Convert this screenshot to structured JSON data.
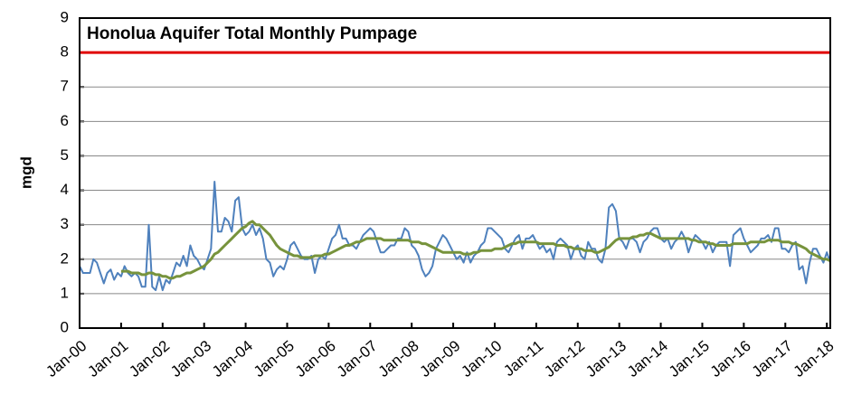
{
  "chart_data": {
    "type": "line",
    "title": "Honolua Aquifer Total Monthly Pumpage",
    "y_label": "mgd",
    "categories": [
      "Jan-00",
      null,
      null,
      null,
      null,
      null,
      null,
      null,
      null,
      null,
      null,
      null,
      "Jan-01",
      null,
      null,
      null,
      null,
      null,
      null,
      null,
      null,
      null,
      null,
      null,
      "Jan-02",
      null,
      null,
      null,
      null,
      null,
      null,
      null,
      null,
      null,
      null,
      null,
      "Jan-03",
      null,
      null,
      null,
      null,
      null,
      null,
      null,
      null,
      null,
      null,
      null,
      "Jan-04",
      null,
      null,
      null,
      null,
      null,
      null,
      null,
      null,
      null,
      null,
      null,
      "Jan-05",
      null,
      null,
      null,
      null,
      null,
      null,
      null,
      null,
      null,
      null,
      null,
      "Jan-06",
      null,
      null,
      null,
      null,
      null,
      null,
      null,
      null,
      null,
      null,
      null,
      "Jan-07",
      null,
      null,
      null,
      null,
      null,
      null,
      null,
      null,
      null,
      null,
      null,
      "Jan-08",
      null,
      null,
      null,
      null,
      null,
      null,
      null,
      null,
      null,
      null,
      null,
      "Jan-09",
      null,
      null,
      null,
      null,
      null,
      null,
      null,
      null,
      null,
      null,
      null,
      "Jan-10",
      null,
      null,
      null,
      null,
      null,
      null,
      null,
      null,
      null,
      null,
      null,
      "Jan-11",
      null,
      null,
      null,
      null,
      null,
      null,
      null,
      null,
      null,
      null,
      null,
      "Jan-12",
      null,
      null,
      null,
      null,
      null,
      null,
      null,
      null,
      null,
      null,
      null,
      "Jan-13",
      null,
      null,
      null,
      null,
      null,
      null,
      null,
      null,
      null,
      null,
      null,
      "Jan-14",
      null,
      null,
      null,
      null,
      null,
      null,
      null,
      null,
      null,
      null,
      null,
      "Jan-15",
      null,
      null,
      null,
      null,
      null,
      null,
      null,
      null,
      null,
      null,
      null,
      "Jan-16",
      null,
      null,
      null,
      null,
      null,
      null,
      null,
      null,
      null,
      null,
      null,
      "Jan-17",
      null,
      null,
      null,
      null,
      null,
      null,
      null,
      null,
      null,
      null,
      null,
      "Jan-18",
      null
    ],
    "series": [
      {
        "color": "#4f81bd",
        "width": 2,
        "values": [
          1.8,
          1.6,
          1.6,
          1.6,
          2.0,
          1.9,
          1.6,
          1.3,
          1.6,
          1.7,
          1.4,
          1.6,
          1.5,
          1.8,
          1.6,
          1.5,
          1.6,
          1.5,
          1.2,
          1.2,
          3.0,
          1.2,
          1.1,
          1.5,
          1.1,
          1.4,
          1.3,
          1.6,
          1.9,
          1.8,
          2.1,
          1.8,
          2.4,
          2.1,
          2.0,
          1.8,
          1.7,
          2.0,
          2.3,
          4.25,
          2.8,
          2.8,
          3.2,
          3.1,
          2.8,
          3.7,
          3.8,
          2.9,
          2.7,
          2.8,
          3.0,
          2.7,
          2.9,
          2.6,
          2.0,
          1.9,
          1.5,
          1.7,
          1.8,
          1.7,
          2.0,
          2.4,
          2.5,
          2.3,
          2.1,
          2.0,
          2.0,
          2.1,
          1.6,
          2.0,
          2.1,
          2.0,
          2.3,
          2.6,
          2.7,
          3.0,
          2.6,
          2.6,
          2.4,
          2.4,
          2.3,
          2.5,
          2.7,
          2.8,
          2.9,
          2.8,
          2.5,
          2.2,
          2.2,
          2.3,
          2.4,
          2.4,
          2.6,
          2.6,
          2.9,
          2.8,
          2.4,
          2.3,
          2.1,
          1.7,
          1.5,
          1.6,
          1.8,
          2.3,
          2.5,
          2.7,
          2.6,
          2.4,
          2.2,
          2.0,
          2.1,
          1.9,
          2.2,
          1.9,
          2.1,
          2.2,
          2.4,
          2.5,
          2.9,
          2.9,
          2.8,
          2.7,
          2.6,
          2.3,
          2.2,
          2.4,
          2.6,
          2.7,
          2.3,
          2.6,
          2.6,
          2.7,
          2.5,
          2.3,
          2.4,
          2.2,
          2.3,
          2.0,
          2.5,
          2.6,
          2.5,
          2.4,
          2.0,
          2.3,
          2.4,
          2.1,
          2.0,
          2.5,
          2.3,
          2.3,
          2.0,
          1.9,
          2.3,
          3.5,
          3.6,
          3.4,
          2.6,
          2.5,
          2.3,
          2.6,
          2.6,
          2.5,
          2.2,
          2.5,
          2.6,
          2.8,
          2.9,
          2.9,
          2.6,
          2.5,
          2.6,
          2.3,
          2.5,
          2.6,
          2.8,
          2.6,
          2.2,
          2.5,
          2.7,
          2.6,
          2.5,
          2.3,
          2.5,
          2.2,
          2.4,
          2.5,
          2.5,
          2.5,
          1.8,
          2.7,
          2.8,
          2.9,
          2.6,
          2.4,
          2.2,
          2.3,
          2.4,
          2.6,
          2.6,
          2.7,
          2.5,
          2.9,
          2.9,
          2.3,
          2.3,
          2.2,
          2.4,
          2.5,
          1.7,
          1.8,
          1.3,
          1.9,
          2.3,
          2.3,
          2.1,
          1.9,
          2.2,
          1.9
        ]
      },
      {
        "color": "#77933c",
        "width": 3,
        "values": [
          null,
          null,
          null,
          null,
          null,
          null,
          null,
          null,
          null,
          null,
          null,
          null,
          1.65,
          1.65,
          1.65,
          1.6,
          1.6,
          1.6,
          1.55,
          1.55,
          1.6,
          1.6,
          1.55,
          1.55,
          1.5,
          1.5,
          1.45,
          1.45,
          1.5,
          1.5,
          1.55,
          1.6,
          1.6,
          1.65,
          1.7,
          1.75,
          1.8,
          1.9,
          2.0,
          2.15,
          2.2,
          2.3,
          2.4,
          2.5,
          2.6,
          2.7,
          2.8,
          2.9,
          2.95,
          3.05,
          3.1,
          3.0,
          3.0,
          2.9,
          2.8,
          2.7,
          2.55,
          2.4,
          2.3,
          2.25,
          2.2,
          2.15,
          2.1,
          2.1,
          2.05,
          2.05,
          2.05,
          2.05,
          2.1,
          2.1,
          2.1,
          2.15,
          2.15,
          2.2,
          2.25,
          2.3,
          2.35,
          2.4,
          2.4,
          2.45,
          2.5,
          2.5,
          2.55,
          2.6,
          2.6,
          2.6,
          2.6,
          2.6,
          2.55,
          2.55,
          2.55,
          2.55,
          2.55,
          2.55,
          2.55,
          2.55,
          2.5,
          2.5,
          2.5,
          2.45,
          2.45,
          2.4,
          2.35,
          2.3,
          2.25,
          2.2,
          2.2,
          2.2,
          2.2,
          2.2,
          2.2,
          2.15,
          2.15,
          2.15,
          2.2,
          2.2,
          2.25,
          2.25,
          2.25,
          2.25,
          2.3,
          2.3,
          2.3,
          2.35,
          2.4,
          2.45,
          2.45,
          2.5,
          2.5,
          2.5,
          2.5,
          2.5,
          2.5,
          2.45,
          2.45,
          2.45,
          2.45,
          2.45,
          2.4,
          2.4,
          2.4,
          2.35,
          2.35,
          2.3,
          2.3,
          2.3,
          2.25,
          2.25,
          2.25,
          2.2,
          2.2,
          2.25,
          2.3,
          2.35,
          2.45,
          2.55,
          2.6,
          2.6,
          2.6,
          2.6,
          2.65,
          2.65,
          2.7,
          2.7,
          2.75,
          2.75,
          2.7,
          2.65,
          2.6,
          2.6,
          2.6,
          2.6,
          2.6,
          2.6,
          2.6,
          2.6,
          2.6,
          2.55,
          2.55,
          2.5,
          2.5,
          2.5,
          2.45,
          2.45,
          2.4,
          2.4,
          2.4,
          2.4,
          2.4,
          2.45,
          2.45,
          2.45,
          2.45,
          2.45,
          2.5,
          2.5,
          2.5,
          2.5,
          2.5,
          2.55,
          2.55,
          2.55,
          2.55,
          2.5,
          2.5,
          2.5,
          2.45,
          2.45,
          2.4,
          2.35,
          2.3,
          2.2,
          2.15,
          2.1,
          2.05,
          2.0,
          2.0,
          1.95
        ]
      }
    ],
    "reference_lines": [
      {
        "value": 8,
        "color": "#e00000"
      }
    ],
    "ylim": [
      0,
      9
    ],
    "yticks": [
      0,
      1,
      2,
      3,
      4,
      5,
      6,
      7,
      8,
      9
    ],
    "grid": true
  }
}
